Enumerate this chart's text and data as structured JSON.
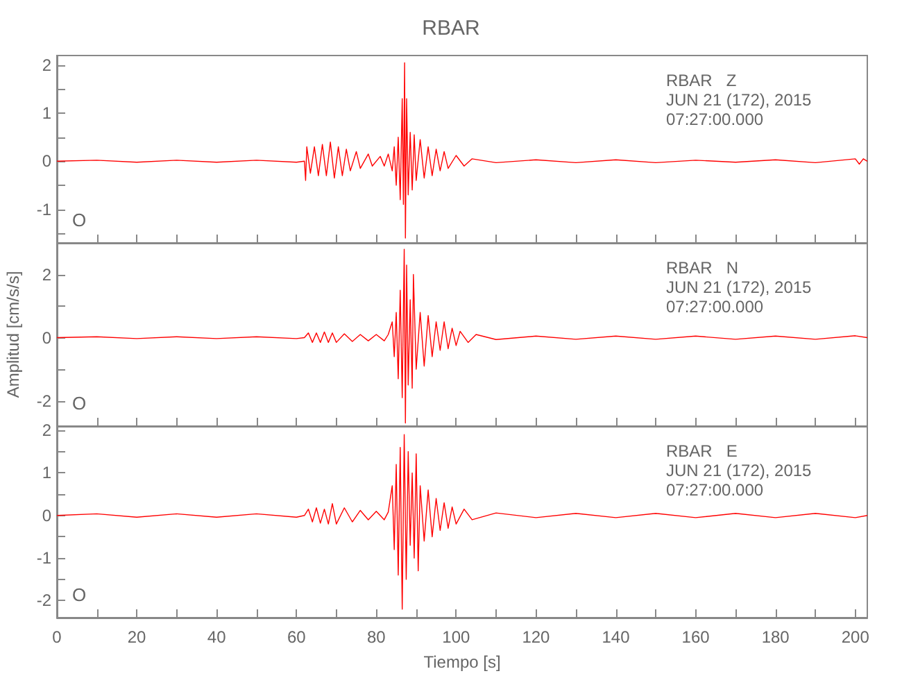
{
  "chart_data": [
    {
      "type": "line",
      "title": "RBAR",
      "annotations": [
        "O",
        "RBAR   Z",
        "JUN 21 (172), 2015",
        "07:27:00.000"
      ],
      "xlim": [
        0,
        203
      ],
      "xticks": [
        0,
        {
          "value": 10,
          "label": null
        },
        20,
        {
          "value": 30,
          "label": null
        },
        40,
        {
          "value": 50,
          "label": null
        },
        60,
        {
          "value": 70,
          "label": null
        },
        80,
        {
          "value": 90,
          "label": null
        },
        100,
        {
          "value": 110,
          "label": null
        },
        120,
        {
          "value": 130,
          "label": null
        },
        140,
        {
          "value": 150,
          "label": null
        },
        160,
        {
          "value": 170,
          "label": null
        },
        180,
        {
          "value": 190,
          "label": null
        },
        200
      ],
      "ylim": [
        -1.7,
        2.2
      ],
      "yticks": [
        {
          "value": -1.5,
          "label": null
        },
        -1,
        {
          "value": -0.5,
          "label": null
        },
        0,
        {
          "value": 0.5,
          "label": null
        },
        1,
        {
          "value": 1.5,
          "label": null
        },
        2
      ],
      "tick_labels": "y",
      "grid": false,
      "marker": "none",
      "series": [
        {
          "color": "#ff0000",
          "x": [
            0,
            10,
            20,
            30,
            40,
            50,
            60,
            62,
            62.3,
            62.6,
            63.5,
            64.5,
            65.5,
            66.5,
            67.5,
            68.5,
            69.5,
            70.5,
            71.5,
            72.5,
            73.5,
            75,
            76,
            78,
            79,
            81,
            82,
            83,
            84,
            84.5,
            85,
            85.5,
            86,
            86.5,
            86.8,
            87.1,
            87.3,
            87.6,
            88,
            88.5,
            89,
            89.5,
            90,
            91,
            92,
            93,
            94,
            95,
            96,
            97,
            98,
            100,
            102,
            104,
            110,
            120,
            130,
            140,
            150,
            160,
            170,
            180,
            190,
            200,
            201,
            202,
            203
          ],
          "values": [
            0,
            0.02,
            -0.02,
            0.02,
            -0.02,
            0.02,
            -0.02,
            0,
            -0.4,
            0.3,
            -0.25,
            0.3,
            -0.3,
            0.35,
            -0.3,
            0.4,
            -0.35,
            0.3,
            -0.3,
            0.25,
            -0.2,
            0.2,
            -0.15,
            0.15,
            -0.1,
            0.1,
            -0.1,
            0.15,
            -0.2,
            0.3,
            -0.5,
            0.5,
            -0.8,
            1.3,
            -0.9,
            2.05,
            -1.6,
            1.3,
            -0.7,
            0.6,
            -0.6,
            0.55,
            -0.4,
            0.45,
            -0.35,
            0.3,
            -0.3,
            0.25,
            -0.2,
            0.2,
            -0.15,
            0.12,
            -0.1,
            0.05,
            -0.03,
            0.03,
            -0.03,
            0.03,
            -0.03,
            0.02,
            -0.02,
            0.03,
            -0.03,
            0.05,
            -0.06,
            0.05,
            0
          ]
        }
      ]
    },
    {
      "type": "line",
      "ylabel": "Amplitud [cm/s/s]",
      "annotations": [
        "O",
        "RBAR   N",
        "JUN 21 (172), 2015",
        "07:27:00.000"
      ],
      "xlim": [
        0,
        203
      ],
      "xticks": [
        0,
        {
          "value": 10,
          "label": null
        },
        20,
        {
          "value": 30,
          "label": null
        },
        40,
        {
          "value": 50,
          "label": null
        },
        60,
        {
          "value": 70,
          "label": null
        },
        80,
        {
          "value": 90,
          "label": null
        },
        100,
        {
          "value": 110,
          "label": null
        },
        120,
        {
          "value": 130,
          "label": null
        },
        140,
        {
          "value": 150,
          "label": null
        },
        160,
        {
          "value": 170,
          "label": null
        },
        180,
        {
          "value": 190,
          "label": null
        },
        200
      ],
      "ylim": [
        -2.8,
        3.0
      ],
      "yticks": [
        -2,
        {
          "value": -1,
          "label": null
        },
        0,
        {
          "value": 1,
          "label": null
        },
        2
      ],
      "tick_labels": "y",
      "grid": false,
      "marker": "none",
      "series": [
        {
          "color": "#ff0000",
          "x": [
            0,
            10,
            20,
            30,
            40,
            50,
            60,
            62,
            63,
            64,
            65,
            66,
            67,
            68,
            69,
            70,
            72,
            74,
            76,
            78,
            80,
            82,
            83,
            84,
            84.5,
            85,
            85.5,
            86,
            86.5,
            87,
            87.3,
            87.6,
            88,
            88.5,
            89,
            89.3,
            90,
            91,
            92,
            93,
            94,
            95,
            96,
            97,
            98,
            99,
            100,
            101,
            103,
            105,
            110,
            120,
            130,
            140,
            150,
            160,
            170,
            180,
            190,
            200,
            203
          ],
          "values": [
            0,
            0.03,
            -0.03,
            0.03,
            -0.03,
            0.03,
            -0.03,
            0,
            0.15,
            -0.15,
            0.15,
            -0.15,
            0.18,
            -0.15,
            0.15,
            -0.15,
            0.12,
            -0.12,
            0.1,
            -0.1,
            0.1,
            -0.1,
            0.1,
            0.5,
            -0.6,
            0.8,
            -1.3,
            1.5,
            -1.9,
            2.8,
            -2.7,
            2.3,
            -1.5,
            1.2,
            -1.6,
            2.0,
            -1.0,
            0.8,
            -0.9,
            0.7,
            -0.6,
            0.5,
            -0.4,
            0.5,
            -0.35,
            0.3,
            -0.25,
            0.2,
            -0.15,
            0.1,
            -0.06,
            0.05,
            -0.05,
            0.05,
            -0.05,
            0.05,
            -0.05,
            0.05,
            -0.05,
            0.06,
            0
          ]
        }
      ]
    },
    {
      "type": "line",
      "xlabel": "Tiempo [s]",
      "annotations": [
        "O",
        "RBAR   E",
        "JUN 21 (172), 2015",
        "07:27:00.000"
      ],
      "xlim": [
        0,
        203
      ],
      "xticks": [
        0,
        {
          "value": 10,
          "label": null
        },
        20,
        {
          "value": 30,
          "label": null
        },
        40,
        {
          "value": 50,
          "label": null
        },
        60,
        {
          "value": 70,
          "label": null
        },
        80,
        {
          "value": 90,
          "label": null
        },
        100,
        {
          "value": 110,
          "label": null
        },
        120,
        {
          "value": 130,
          "label": null
        },
        140,
        {
          "value": 150,
          "label": null
        },
        160,
        {
          "value": 170,
          "label": null
        },
        180,
        {
          "value": 190,
          "label": null
        },
        200
      ],
      "ylim": [
        -2.4,
        2.1
      ],
      "yticks": [
        -2,
        {
          "value": -1.5,
          "label": null
        },
        -1,
        {
          "value": -0.5,
          "label": null
        },
        0,
        {
          "value": 0.5,
          "label": null
        },
        1,
        {
          "value": 1.5,
          "label": null
        },
        2
      ],
      "grid": false,
      "marker": "none",
      "series": [
        {
          "color": "#ff0000",
          "x": [
            0,
            10,
            20,
            30,
            40,
            50,
            60,
            62,
            63,
            64,
            65,
            66,
            67,
            68,
            69,
            70,
            72,
            74,
            76,
            78,
            80,
            82,
            83,
            84,
            84.5,
            85,
            85.5,
            86,
            86.5,
            87,
            87.5,
            88,
            88.5,
            89,
            89.5,
            90,
            90.5,
            91,
            92,
            93,
            94,
            95,
            96,
            97,
            98,
            99,
            100,
            102,
            104,
            110,
            120,
            130,
            140,
            150,
            160,
            170,
            180,
            190,
            200,
            203
          ],
          "values": [
            0,
            0.04,
            -0.04,
            0.04,
            -0.04,
            0.04,
            -0.04,
            0,
            0.15,
            -0.15,
            0.18,
            -0.18,
            0.15,
            -0.2,
            0.28,
            -0.2,
            0.18,
            -0.15,
            0.12,
            -0.1,
            0.1,
            -0.1,
            0.08,
            0.7,
            -0.8,
            1.2,
            -1.4,
            1.6,
            -2.2,
            1.9,
            -1.5,
            1.5,
            -0.7,
            1.0,
            -1.0,
            1.45,
            -1.3,
            0.7,
            -0.6,
            0.6,
            -0.5,
            0.4,
            -0.35,
            0.3,
            -0.3,
            0.2,
            -0.2,
            0.15,
            -0.1,
            0.06,
            -0.05,
            0.05,
            -0.05,
            0.05,
            -0.05,
            0.05,
            -0.05,
            0.05,
            -0.05,
            0
          ]
        }
      ]
    }
  ]
}
